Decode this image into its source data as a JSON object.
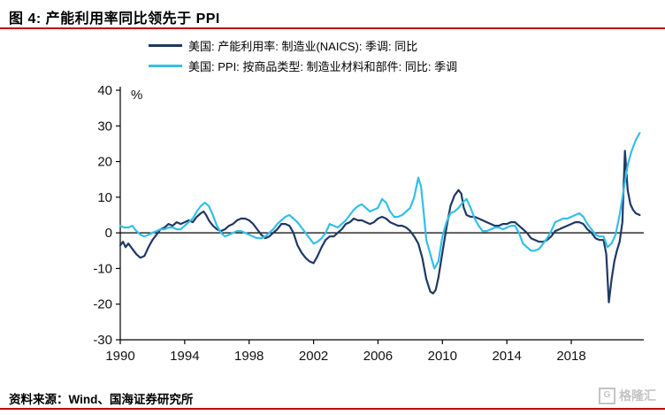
{
  "header": {
    "title": "图 4:  产能利用率同比领先于 PPI"
  },
  "footer": {
    "source": "资料来源：Wind、国海证券研究所",
    "watermark": "格隆汇",
    "watermark_icon_letter": "G"
  },
  "colors": {
    "accent_red": "#c00000",
    "axis": "#000000",
    "series_navy": "#1f3864",
    "series_cyan": "#33bfe9",
    "watermark_gray": "#c4c4c4"
  },
  "chart_data": {
    "type": "line",
    "title": "产能利用率同比领先于 PPI",
    "ylabel_unit": "%",
    "xlim": [
      1990,
      2022.5
    ],
    "ylim": [
      -30,
      40
    ],
    "y_ticks": [
      40,
      30,
      20,
      10,
      0,
      -10,
      -20,
      -30
    ],
    "x_ticks": [
      1990,
      1994,
      1998,
      2002,
      2006,
      2010,
      2014,
      2018
    ],
    "grid": false,
    "legend_position": "top",
    "zero_line": true,
    "series": [
      {
        "name": "美国: 产能利用率: 制造业(NAICS): 季调: 同比",
        "color": "#1f3864",
        "points": [
          [
            1990.0,
            -3.5
          ],
          [
            1990.17,
            -2.5
          ],
          [
            1990.33,
            -4
          ],
          [
            1990.5,
            -3
          ],
          [
            1990.75,
            -4.5
          ],
          [
            1991.0,
            -6
          ],
          [
            1991.25,
            -7
          ],
          [
            1991.5,
            -6.5
          ],
          [
            1991.75,
            -4
          ],
          [
            1992.0,
            -2
          ],
          [
            1992.25,
            -0.5
          ],
          [
            1992.5,
            1
          ],
          [
            1992.75,
            1.5
          ],
          [
            1993.0,
            2.5
          ],
          [
            1993.25,
            2
          ],
          [
            1993.5,
            3
          ],
          [
            1993.75,
            2.5
          ],
          [
            1994.0,
            3
          ],
          [
            1994.25,
            3.5
          ],
          [
            1994.5,
            3
          ],
          [
            1994.75,
            4.5
          ],
          [
            1995.0,
            5.5
          ],
          [
            1995.17,
            6
          ],
          [
            1995.33,
            5
          ],
          [
            1995.5,
            3.5
          ],
          [
            1995.75,
            2
          ],
          [
            1996.0,
            1
          ],
          [
            1996.25,
            0.5
          ],
          [
            1996.5,
            1
          ],
          [
            1996.75,
            2
          ],
          [
            1997.0,
            2.5
          ],
          [
            1997.25,
            3.5
          ],
          [
            1997.5,
            4
          ],
          [
            1997.75,
            4
          ],
          [
            1998.0,
            3.5
          ],
          [
            1998.25,
            2.5
          ],
          [
            1998.5,
            1
          ],
          [
            1998.75,
            -0.5
          ],
          [
            1999.0,
            -1.5
          ],
          [
            1999.25,
            -1
          ],
          [
            1999.5,
            0
          ],
          [
            1999.75,
            1
          ],
          [
            2000.0,
            2.5
          ],
          [
            2000.25,
            2.5
          ],
          [
            2000.5,
            2
          ],
          [
            2000.75,
            0
          ],
          [
            2001.0,
            -3.5
          ],
          [
            2001.25,
            -5.5
          ],
          [
            2001.5,
            -7
          ],
          [
            2001.75,
            -8
          ],
          [
            2002.0,
            -8.5
          ],
          [
            2002.25,
            -6.5
          ],
          [
            2002.5,
            -4
          ],
          [
            2002.75,
            -2
          ],
          [
            2003.0,
            -1
          ],
          [
            2003.25,
            -1
          ],
          [
            2003.5,
            0
          ],
          [
            2003.75,
            1
          ],
          [
            2004.0,
            2.5
          ],
          [
            2004.25,
            3
          ],
          [
            2004.5,
            4
          ],
          [
            2004.75,
            3.5
          ],
          [
            2005.0,
            3.5
          ],
          [
            2005.25,
            3
          ],
          [
            2005.5,
            2.5
          ],
          [
            2005.75,
            3
          ],
          [
            2006.0,
            4
          ],
          [
            2006.25,
            4.5
          ],
          [
            2006.5,
            4
          ],
          [
            2006.75,
            3
          ],
          [
            2007.0,
            2.5
          ],
          [
            2007.25,
            2
          ],
          [
            2007.5,
            2
          ],
          [
            2007.75,
            1.5
          ],
          [
            2008.0,
            0.5
          ],
          [
            2008.25,
            -1
          ],
          [
            2008.5,
            -3
          ],
          [
            2008.75,
            -7
          ],
          [
            2009.0,
            -13
          ],
          [
            2009.25,
            -16.5
          ],
          [
            2009.42,
            -17
          ],
          [
            2009.58,
            -16
          ],
          [
            2009.75,
            -12.5
          ],
          [
            2010.0,
            -5.5
          ],
          [
            2010.25,
            1.5
          ],
          [
            2010.5,
            7.5
          ],
          [
            2010.75,
            10.5
          ],
          [
            2011.0,
            12
          ],
          [
            2011.17,
            11
          ],
          [
            2011.33,
            7
          ],
          [
            2011.5,
            5
          ],
          [
            2011.75,
            4.5
          ],
          [
            2012.0,
            4.5
          ],
          [
            2012.25,
            4
          ],
          [
            2012.5,
            3.5
          ],
          [
            2012.75,
            3
          ],
          [
            2013.0,
            2.5
          ],
          [
            2013.25,
            2
          ],
          [
            2013.5,
            2
          ],
          [
            2013.75,
            2.5
          ],
          [
            2014.0,
            2.5
          ],
          [
            2014.25,
            3
          ],
          [
            2014.5,
            3
          ],
          [
            2014.75,
            2
          ],
          [
            2015.0,
            1
          ],
          [
            2015.25,
            0
          ],
          [
            2015.5,
            -1.5
          ],
          [
            2015.75,
            -2
          ],
          [
            2016.0,
            -2.5
          ],
          [
            2016.25,
            -2.5
          ],
          [
            2016.5,
            -2
          ],
          [
            2016.75,
            -1
          ],
          [
            2017.0,
            0.5
          ],
          [
            2017.25,
            1
          ],
          [
            2017.5,
            1.5
          ],
          [
            2017.75,
            2
          ],
          [
            2018.0,
            2.5
          ],
          [
            2018.25,
            3
          ],
          [
            2018.5,
            3
          ],
          [
            2018.75,
            2.5
          ],
          [
            2019.0,
            1
          ],
          [
            2019.25,
            0
          ],
          [
            2019.5,
            -1.5
          ],
          [
            2019.75,
            -2
          ],
          [
            2020.0,
            -2
          ],
          [
            2020.17,
            -6
          ],
          [
            2020.33,
            -19.5
          ],
          [
            2020.5,
            -13
          ],
          [
            2020.67,
            -8
          ],
          [
            2020.83,
            -5
          ],
          [
            2021.0,
            -2.5
          ],
          [
            2021.17,
            3
          ],
          [
            2021.33,
            23
          ],
          [
            2021.5,
            12
          ],
          [
            2021.67,
            8
          ],
          [
            2021.83,
            6.5
          ],
          [
            2022.0,
            5.5
          ],
          [
            2022.25,
            5
          ]
        ]
      },
      {
        "name": "美国: PPI: 按商品类型: 制造业材料和部件: 同比: 季调",
        "color": "#33bfe9",
        "points": [
          [
            1990.0,
            2
          ],
          [
            1990.25,
            1.5
          ],
          [
            1990.5,
            1.5
          ],
          [
            1990.75,
            2
          ],
          [
            1991.0,
            0.5
          ],
          [
            1991.25,
            -0.5
          ],
          [
            1991.5,
            -1
          ],
          [
            1991.75,
            -0.5
          ],
          [
            1992.0,
            0
          ],
          [
            1992.25,
            0.5
          ],
          [
            1992.5,
            1
          ],
          [
            1992.75,
            1
          ],
          [
            1993.0,
            1.5
          ],
          [
            1993.25,
            1.5
          ],
          [
            1993.5,
            1
          ],
          [
            1993.75,
            1
          ],
          [
            1994.0,
            2
          ],
          [
            1994.25,
            3
          ],
          [
            1994.5,
            4
          ],
          [
            1994.75,
            6
          ],
          [
            1995.0,
            7.5
          ],
          [
            1995.25,
            8.5
          ],
          [
            1995.5,
            7.5
          ],
          [
            1995.75,
            5
          ],
          [
            1996.0,
            2
          ],
          [
            1996.25,
            0
          ],
          [
            1996.5,
            -1
          ],
          [
            1996.75,
            -0.5
          ],
          [
            1997.0,
            0
          ],
          [
            1997.25,
            0.5
          ],
          [
            1997.5,
            0.5
          ],
          [
            1997.75,
            0
          ],
          [
            1998.0,
            -0.5
          ],
          [
            1998.25,
            -1
          ],
          [
            1998.5,
            -1.5
          ],
          [
            1998.75,
            -1.5
          ],
          [
            1999.0,
            -1
          ],
          [
            1999.25,
            0
          ],
          [
            1999.5,
            1
          ],
          [
            1999.75,
            2.5
          ],
          [
            2000.0,
            3.5
          ],
          [
            2000.25,
            4.5
          ],
          [
            2000.5,
            5
          ],
          [
            2000.75,
            4
          ],
          [
            2001.0,
            3
          ],
          [
            2001.25,
            1.5
          ],
          [
            2001.5,
            0
          ],
          [
            2001.75,
            -1.5
          ],
          [
            2002.0,
            -3
          ],
          [
            2002.25,
            -2.5
          ],
          [
            2002.5,
            -1.5
          ],
          [
            2002.75,
            0
          ],
          [
            2003.0,
            2.5
          ],
          [
            2003.25,
            2
          ],
          [
            2003.5,
            1.5
          ],
          [
            2003.75,
            2.5
          ],
          [
            2004.0,
            3.5
          ],
          [
            2004.25,
            5
          ],
          [
            2004.5,
            6.5
          ],
          [
            2004.75,
            7.5
          ],
          [
            2005.0,
            8
          ],
          [
            2005.25,
            7
          ],
          [
            2005.5,
            6
          ],
          [
            2005.75,
            6.5
          ],
          [
            2006.0,
            7
          ],
          [
            2006.25,
            9.5
          ],
          [
            2006.5,
            8.5
          ],
          [
            2006.75,
            6
          ],
          [
            2007.0,
            4.5
          ],
          [
            2007.25,
            4.5
          ],
          [
            2007.5,
            5
          ],
          [
            2007.75,
            6
          ],
          [
            2008.0,
            7
          ],
          [
            2008.25,
            10
          ],
          [
            2008.5,
            15.5
          ],
          [
            2008.67,
            13
          ],
          [
            2008.83,
            6
          ],
          [
            2009.0,
            -2
          ],
          [
            2009.25,
            -6
          ],
          [
            2009.5,
            -10
          ],
          [
            2009.75,
            -8
          ],
          [
            2010.0,
            -1
          ],
          [
            2010.25,
            3
          ],
          [
            2010.5,
            5.5
          ],
          [
            2010.75,
            6
          ],
          [
            2011.0,
            7
          ],
          [
            2011.25,
            8.5
          ],
          [
            2011.5,
            9.5
          ],
          [
            2011.75,
            7
          ],
          [
            2012.0,
            4
          ],
          [
            2012.25,
            2
          ],
          [
            2012.5,
            0.5
          ],
          [
            2012.75,
            0.5
          ],
          [
            2013.0,
            1
          ],
          [
            2013.25,
            1.5
          ],
          [
            2013.5,
            1.5
          ],
          [
            2013.75,
            1
          ],
          [
            2014.0,
            1.5
          ],
          [
            2014.25,
            2
          ],
          [
            2014.5,
            2
          ],
          [
            2014.75,
            0
          ],
          [
            2015.0,
            -3
          ],
          [
            2015.25,
            -4
          ],
          [
            2015.5,
            -5
          ],
          [
            2015.75,
            -5
          ],
          [
            2016.0,
            -4.5
          ],
          [
            2016.25,
            -3
          ],
          [
            2016.5,
            -1.5
          ],
          [
            2016.75,
            0.5
          ],
          [
            2017.0,
            3
          ],
          [
            2017.25,
            3.5
          ],
          [
            2017.5,
            4
          ],
          [
            2017.75,
            4
          ],
          [
            2018.0,
            4.5
          ],
          [
            2018.25,
            5
          ],
          [
            2018.5,
            5.5
          ],
          [
            2018.75,
            4.5
          ],
          [
            2019.0,
            2.5
          ],
          [
            2019.25,
            1
          ],
          [
            2019.5,
            -0.5
          ],
          [
            2019.75,
            -1
          ],
          [
            2020.0,
            -1
          ],
          [
            2020.25,
            -4
          ],
          [
            2020.5,
            -3
          ],
          [
            2020.75,
            -0.5
          ],
          [
            2021.0,
            5
          ],
          [
            2021.25,
            12
          ],
          [
            2021.5,
            19
          ],
          [
            2021.75,
            23
          ],
          [
            2022.0,
            26
          ],
          [
            2022.25,
            28
          ]
        ]
      }
    ]
  }
}
